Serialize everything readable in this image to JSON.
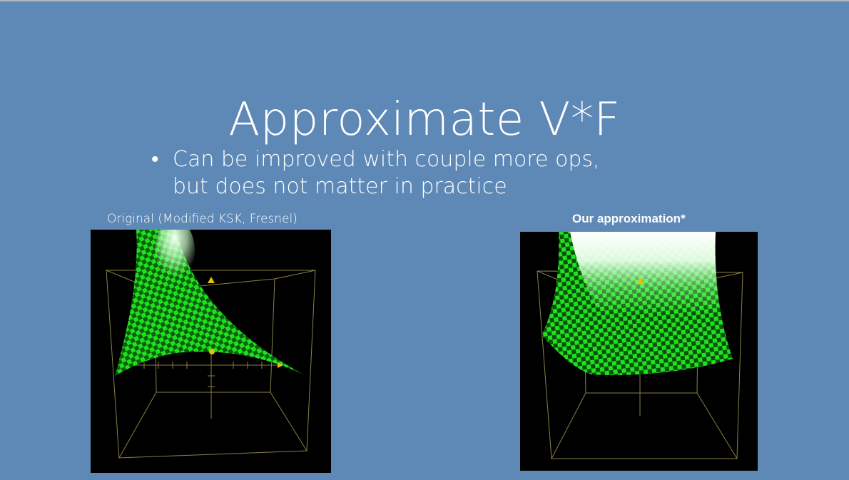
{
  "slide": {
    "title": "Approximate V*F",
    "bullets": [
      "Can be improved with couple more ops, but does not matter in practice"
    ],
    "bullet_symbol": "•"
  },
  "plots": {
    "left_caption": "Original (Modified KSK, Fresnel)",
    "right_caption": "Our approximation*"
  },
  "colors": {
    "background": "#5e88b5",
    "text": "#ffffff",
    "surface_green": "#1fe11f",
    "surface_dark": "#0a4f0a",
    "highlight": "#e9ffe9",
    "axis": "#8a8145",
    "marker": "#e6c200"
  }
}
